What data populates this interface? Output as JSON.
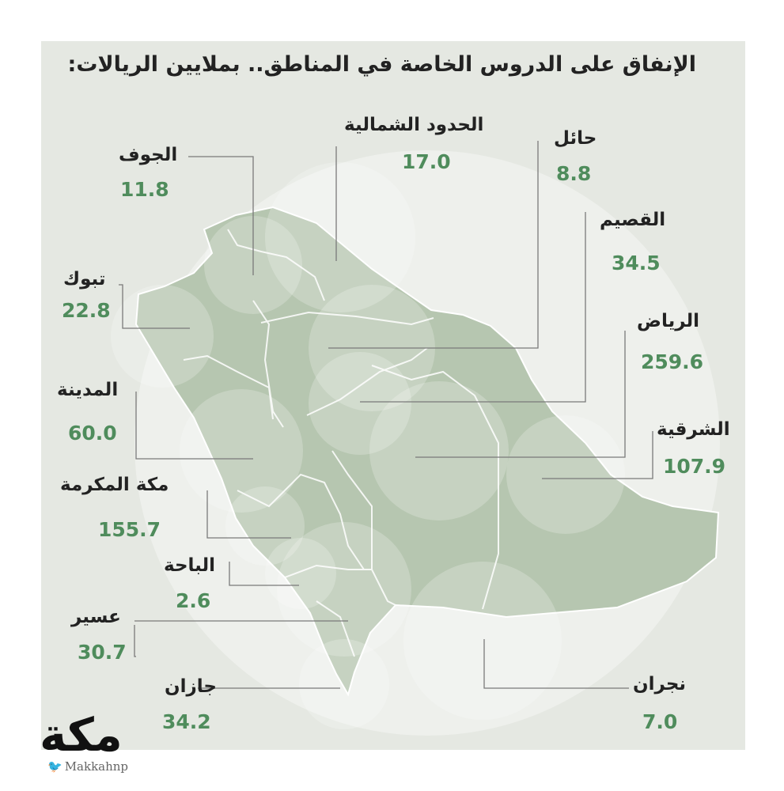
{
  "title": "الإنفاق على الدروس الخاصة في المناطق.. بملايين الريالات:",
  "regions": [
    {
      "id": "aljouf",
      "name": "الجوف",
      "value": "11.8"
    },
    {
      "id": "northern-borders",
      "name": "الحدود الشمالية",
      "value": "17.0"
    },
    {
      "id": "hail",
      "name": "حائل",
      "value": "8.8"
    },
    {
      "id": "qassim",
      "name": "القصيم",
      "value": "34.5"
    },
    {
      "id": "riyadh",
      "name": "الرياض",
      "value": "259.6"
    },
    {
      "id": "eastern",
      "name": "الشرقية",
      "value": "107.9"
    },
    {
      "id": "tabuk",
      "name": "تبوك",
      "value": "22.8"
    },
    {
      "id": "madinah",
      "name": "المدينة",
      "value": "60.0"
    },
    {
      "id": "makkah",
      "name": "مكة المكرمة",
      "value": "155.7"
    },
    {
      "id": "albaha",
      "name": "الباحة",
      "value": "2.6"
    },
    {
      "id": "asir",
      "name": "عسير",
      "value": "30.7"
    },
    {
      "id": "jazan",
      "name": "جازان",
      "value": "34.2"
    },
    {
      "id": "najran",
      "name": "نجران",
      "value": "7.0"
    }
  ],
  "logo": {
    "text": "مكة",
    "twitter_handle": "Makkahnp",
    "twitter_icon": "twitter-bird-icon"
  },
  "colors": {
    "panel": "#e5e8e2",
    "land": "#b6c6b0",
    "value_text": "#4f8c5c",
    "bubble": "#ffffff"
  }
}
